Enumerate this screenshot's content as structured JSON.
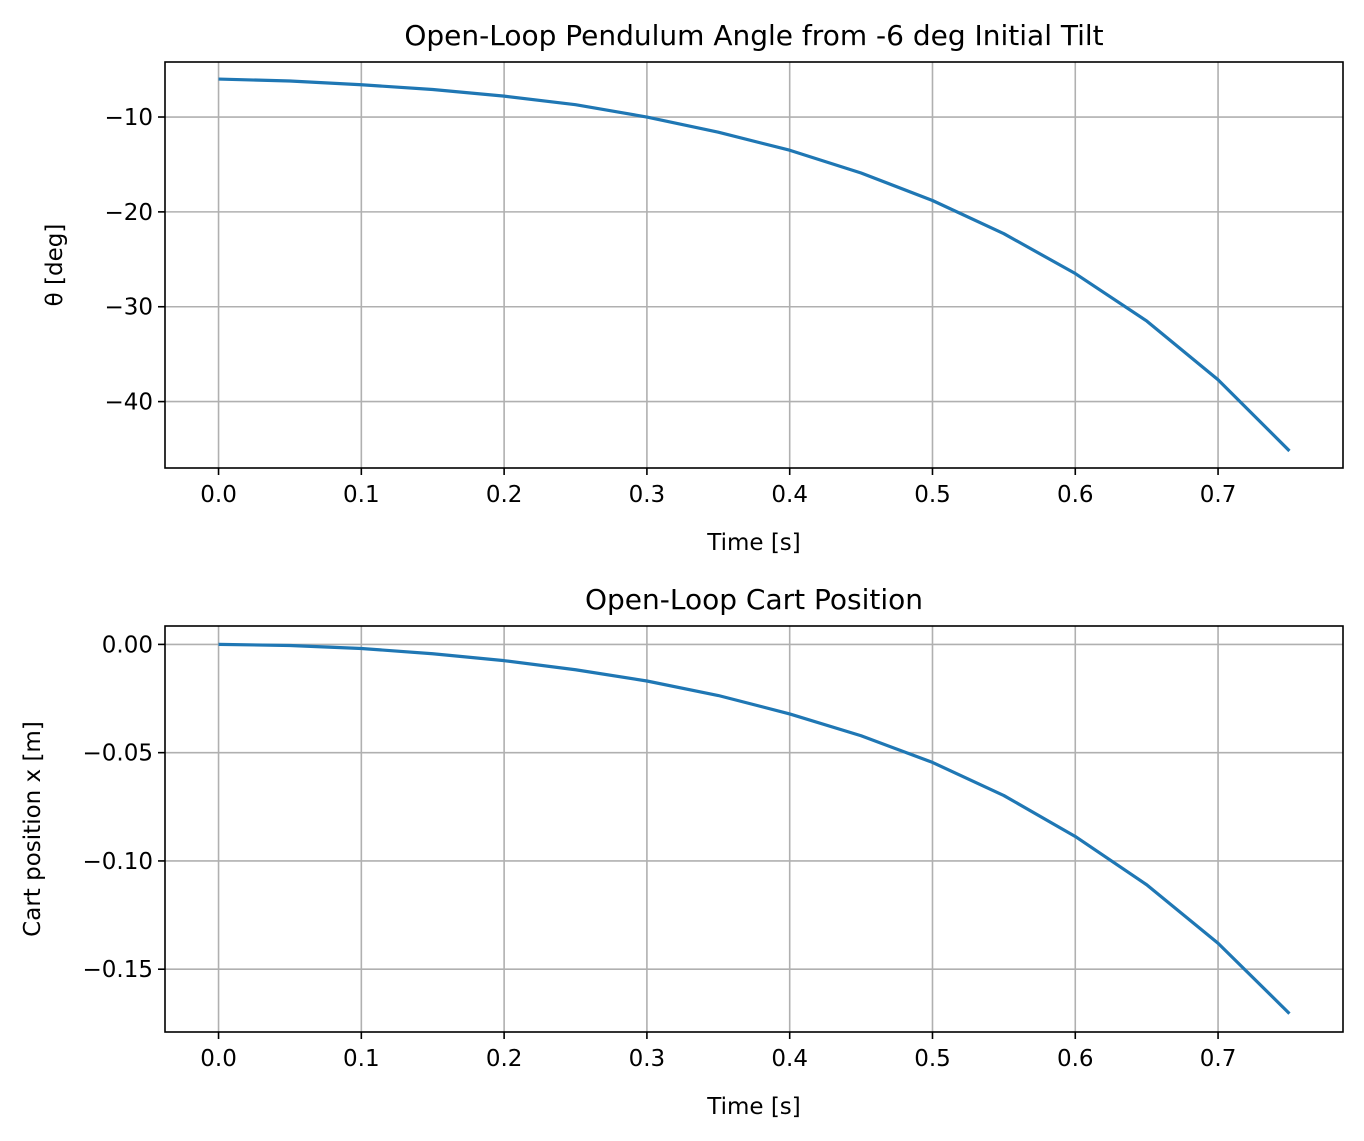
{
  "chart_data": [
    {
      "type": "line",
      "title": "Open-Loop Pendulum Angle from -6 deg Initial Tilt",
      "xlabel": "Time [s]",
      "ylabel": "θ [deg]",
      "xlim": [
        -0.0375,
        0.7875
      ],
      "ylim": [
        -47.0,
        -4.2
      ],
      "xticks": [
        0.0,
        0.1,
        0.2,
        0.3,
        0.4,
        0.5,
        0.6,
        0.7
      ],
      "xtick_labels": [
        "0.0",
        "0.1",
        "0.2",
        "0.3",
        "0.4",
        "0.5",
        "0.6",
        "0.7"
      ],
      "yticks": [
        -10,
        -20,
        -30,
        -40
      ],
      "ytick_labels": [
        "−10",
        "−20",
        "−30",
        "−40"
      ],
      "grid": true,
      "color": "#1f77b4",
      "series": [
        {
          "x": [
            0.0,
            0.05,
            0.1,
            0.15,
            0.2,
            0.25,
            0.3,
            0.35,
            0.4,
            0.45,
            0.5,
            0.55,
            0.6,
            0.65,
            0.7,
            0.75
          ],
          "values": [
            -6.0,
            -6.2,
            -6.6,
            -7.1,
            -7.8,
            -8.7,
            -10.0,
            -11.6,
            -13.5,
            -15.9,
            -18.8,
            -22.3,
            -26.5,
            -31.5,
            -37.7,
            -45.2
          ]
        }
      ]
    },
    {
      "type": "line",
      "title": "Open-Loop Cart Position",
      "xlabel": "Time [s]",
      "ylabel": "Cart position x [m]",
      "xlim": [
        -0.0375,
        0.7875
      ],
      "ylim": [
        -0.179,
        0.0085
      ],
      "xticks": [
        0.0,
        0.1,
        0.2,
        0.3,
        0.4,
        0.5,
        0.6,
        0.7
      ],
      "xtick_labels": [
        "0.0",
        "0.1",
        "0.2",
        "0.3",
        "0.4",
        "0.5",
        "0.6",
        "0.7"
      ],
      "yticks": [
        0.0,
        -0.05,
        -0.1,
        -0.15
      ],
      "ytick_labels": [
        "0.00",
        "−0.05",
        "−0.10",
        "−0.15"
      ],
      "grid": true,
      "color": "#1f77b4",
      "series": [
        {
          "x": [
            0.0,
            0.05,
            0.1,
            0.15,
            0.2,
            0.25,
            0.3,
            0.35,
            0.4,
            0.45,
            0.5,
            0.55,
            0.6,
            0.65,
            0.7,
            0.75
          ],
          "values": [
            0.0,
            -0.0005,
            -0.0019,
            -0.0043,
            -0.0075,
            -0.0117,
            -0.0169,
            -0.0236,
            -0.0321,
            -0.0422,
            -0.0545,
            -0.0698,
            -0.0887,
            -0.111,
            -0.138,
            -0.1705
          ]
        }
      ]
    }
  ]
}
